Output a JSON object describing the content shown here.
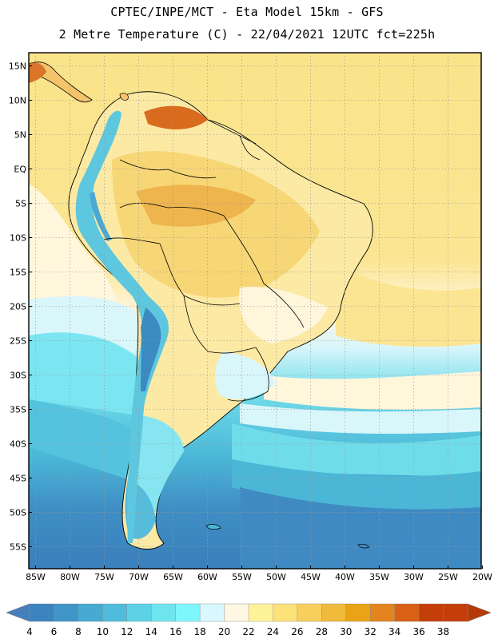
{
  "header": {
    "line1": "CPTEC/INPE/MCT -  Eta Model 15km - GFS",
    "line2": "2 Metre Temperature (C) - 22/04/2021 12UTC fct=225h"
  },
  "lat_labels": [
    "15N",
    "10N",
    "5N",
    "EQ",
    "5S",
    "10S",
    "15S",
    "20S",
    "25S",
    "30S",
    "35S",
    "40S",
    "45S",
    "50S",
    "55S"
  ],
  "lon_labels": [
    "85W",
    "80W",
    "75W",
    "70W",
    "65W",
    "60W",
    "55W",
    "50W",
    "45W",
    "40W",
    "35W",
    "30W",
    "25W",
    "20W"
  ],
  "colorbar": {
    "labels": [
      "4",
      "6",
      "8",
      "10",
      "12",
      "14",
      "16",
      "18",
      "20",
      "22",
      "24",
      "26",
      "28",
      "30",
      "32",
      "34",
      "36",
      "38"
    ],
    "colors": [
      "#3a78b8",
      "#3c84c0",
      "#3f95c8",
      "#46aad2",
      "#4fbcdc",
      "#5dd2e6",
      "#6ee4ef",
      "#7df7fb",
      "#d9f8fd",
      "#fff7e2",
      "#fff39a",
      "#fde27a",
      "#f8cf5c",
      "#f0bb3a",
      "#e9a315",
      "#e3841e",
      "#d86116",
      "#c43e0a",
      "#9c2c06"
    ]
  },
  "palette": {
    "ocean_deep": "#3f86bf",
    "ocean_mid": "#55bddb",
    "ocean_cyan": "#72dcea",
    "ocean_light": "#d8f6fb",
    "pale": "#fff6e0",
    "yellow": "#fdf0a0",
    "yellow_warm": "#f9dc78",
    "orange": "#f1c05a",
    "orange_hot": "#e58f2c",
    "red_hot": "#c6531a",
    "land_cool": "#fef8dd",
    "andes": "#6ad2e2",
    "andes_peak": "#3d8cc4"
  }
}
